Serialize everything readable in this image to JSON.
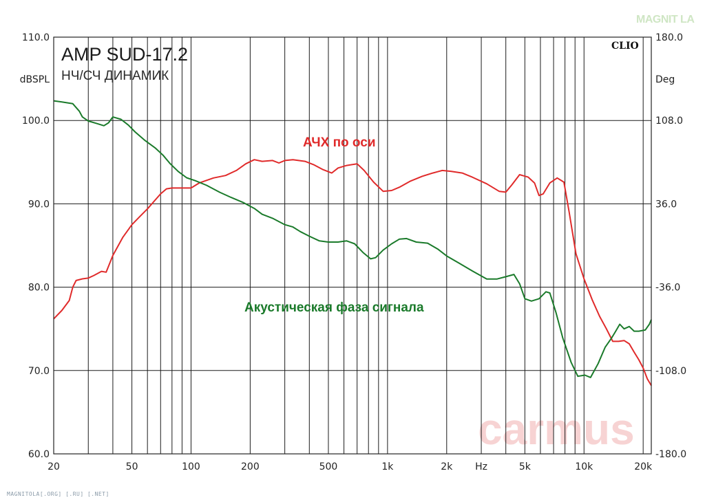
{
  "chart_data": {
    "type": "line",
    "title": "AMP SUD-17.2",
    "subtitle": "НЧ/СЧ ДИНАМИК",
    "brand": "CLIO",
    "x_scale": "log",
    "xlim": [
      20,
      22000
    ],
    "x_ticks": [
      {
        "value": 20,
        "label": "20"
      },
      {
        "value": 50,
        "label": "50"
      },
      {
        "value": 100,
        "label": "100"
      },
      {
        "value": 200,
        "label": "200"
      },
      {
        "value": 500,
        "label": "500"
      },
      {
        "value": 1000,
        "label": "1k"
      },
      {
        "value": 2000,
        "label": "2k"
      },
      {
        "value": 3000,
        "label": "Hz"
      },
      {
        "value": 5000,
        "label": "5k"
      },
      {
        "value": 10000,
        "label": "10k"
      },
      {
        "value": 20000,
        "label": "20k"
      }
    ],
    "gridlines_x": [
      20,
      30,
      40,
      50,
      60,
      70,
      80,
      90,
      100,
      200,
      300,
      400,
      500,
      600,
      700,
      800,
      900,
      1000,
      2000,
      3000,
      4000,
      5000,
      6000,
      7000,
      8000,
      9000,
      10000,
      20000
    ],
    "y_left": {
      "unit": "dBSPL",
      "ylim": [
        60,
        110
      ],
      "ticks": [
        "60.0",
        "70.0",
        "80.0",
        "90.0",
        "100.0",
        "110.0"
      ]
    },
    "y_right": {
      "unit": "Deg",
      "ylim": [
        -180,
        180
      ],
      "ticks": [
        "-180.0",
        "-108.0",
        "-36.0",
        "36.0",
        "108.0",
        "180.0"
      ]
    },
    "grid": true,
    "series": [
      {
        "name": "АЧХ по оси",
        "axis": "left",
        "color": "#e02a2a",
        "points": [
          [
            20,
            76.2
          ],
          [
            22,
            77.2
          ],
          [
            24,
            78.4
          ],
          [
            25,
            80
          ],
          [
            26,
            80.8
          ],
          [
            28,
            81.0
          ],
          [
            30,
            81.1
          ],
          [
            32,
            81.4
          ],
          [
            35,
            81.9
          ],
          [
            37,
            81.8
          ],
          [
            40,
            83.8
          ],
          [
            45,
            86.0
          ],
          [
            50,
            87.5
          ],
          [
            55,
            88.5
          ],
          [
            60,
            89.4
          ],
          [
            70,
            91.2
          ],
          [
            75,
            91.8
          ],
          [
            80,
            91.9
          ],
          [
            90,
            91.9
          ],
          [
            100,
            91.9
          ],
          [
            110,
            92.5
          ],
          [
            130,
            93.1
          ],
          [
            150,
            93.4
          ],
          [
            170,
            94.0
          ],
          [
            190,
            94.8
          ],
          [
            210,
            95.3
          ],
          [
            230,
            95.1
          ],
          [
            260,
            95.2
          ],
          [
            280,
            94.9
          ],
          [
            300,
            95.2
          ],
          [
            330,
            95.3
          ],
          [
            380,
            95.1
          ],
          [
            420,
            94.7
          ],
          [
            470,
            94.1
          ],
          [
            520,
            93.7
          ],
          [
            560,
            94.3
          ],
          [
            620,
            94.6
          ],
          [
            700,
            94.8
          ],
          [
            760,
            94.0
          ],
          [
            850,
            92.6
          ],
          [
            950,
            91.5
          ],
          [
            1050,
            91.6
          ],
          [
            1150,
            92.0
          ],
          [
            1300,
            92.7
          ],
          [
            1500,
            93.3
          ],
          [
            1700,
            93.7
          ],
          [
            1900,
            94.0
          ],
          [
            2100,
            93.9
          ],
          [
            2400,
            93.7
          ],
          [
            2700,
            93.2
          ],
          [
            3200,
            92.4
          ],
          [
            3700,
            91.5
          ],
          [
            4000,
            91.4
          ],
          [
            4300,
            92.3
          ],
          [
            4700,
            93.5
          ],
          [
            5200,
            93.2
          ],
          [
            5600,
            92.5
          ],
          [
            5900,
            91.0
          ],
          [
            6200,
            91.2
          ],
          [
            6700,
            92.5
          ],
          [
            7300,
            93.1
          ],
          [
            7900,
            92.6
          ],
          [
            8400,
            89.0
          ],
          [
            9100,
            84.0
          ],
          [
            10000,
            81.0
          ],
          [
            11000,
            78.5
          ],
          [
            12000,
            76.5
          ],
          [
            13000,
            75.0
          ],
          [
            14000,
            73.5
          ],
          [
            15000,
            73.5
          ],
          [
            16000,
            73.6
          ],
          [
            17000,
            73.2
          ],
          [
            18000,
            72.2
          ],
          [
            19000,
            71.3
          ],
          [
            20000,
            70.3
          ],
          [
            21000,
            69.0
          ],
          [
            22000,
            68.2
          ]
        ]
      },
      {
        "name": "Акустическая фаза сигнала",
        "axis": "right",
        "color": "#1a7a2a",
        "points": [
          [
            20,
            125
          ],
          [
            22,
            124
          ],
          [
            25,
            122.5
          ],
          [
            27,
            116
          ],
          [
            28,
            111
          ],
          [
            30,
            107.5
          ],
          [
            33,
            105.5
          ],
          [
            36,
            103.5
          ],
          [
            38,
            106
          ],
          [
            40,
            111
          ],
          [
            44,
            109
          ],
          [
            48,
            104
          ],
          [
            52,
            98
          ],
          [
            58,
            91
          ],
          [
            66,
            84
          ],
          [
            72,
            78
          ],
          [
            78,
            71
          ],
          [
            86,
            64
          ],
          [
            95,
            58.5
          ],
          [
            105,
            56
          ],
          [
            120,
            52
          ],
          [
            140,
            46
          ],
          [
            160,
            41.5
          ],
          [
            185,
            37
          ],
          [
            210,
            32
          ],
          [
            230,
            27
          ],
          [
            260,
            23.5
          ],
          [
            300,
            18
          ],
          [
            330,
            16
          ],
          [
            360,
            12
          ],
          [
            400,
            8
          ],
          [
            450,
            4
          ],
          [
            500,
            3
          ],
          [
            560,
            3
          ],
          [
            620,
            4
          ],
          [
            680,
            1.5
          ],
          [
            750,
            -6
          ],
          [
            820,
            -11.5
          ],
          [
            870,
            -10.5
          ],
          [
            950,
            -4
          ],
          [
            1050,
            1.5
          ],
          [
            1150,
            5.5
          ],
          [
            1250,
            6
          ],
          [
            1400,
            3
          ],
          [
            1600,
            2
          ],
          [
            1800,
            -3
          ],
          [
            2000,
            -9
          ],
          [
            2300,
            -15
          ],
          [
            2700,
            -22
          ],
          [
            3200,
            -29
          ],
          [
            3600,
            -29
          ],
          [
            4000,
            -27
          ],
          [
            4400,
            -25
          ],
          [
            4700,
            -33
          ],
          [
            5000,
            -46
          ],
          [
            5400,
            -48
          ],
          [
            5900,
            -46
          ],
          [
            6400,
            -40
          ],
          [
            6700,
            -41
          ],
          [
            7200,
            -58
          ],
          [
            7800,
            -80
          ],
          [
            8600,
            -101
          ],
          [
            9300,
            -113
          ],
          [
            10100,
            -112
          ],
          [
            10800,
            -114
          ],
          [
            11800,
            -102
          ],
          [
            12800,
            -88
          ],
          [
            13800,
            -80
          ],
          [
            14500,
            -74
          ],
          [
            15200,
            -68
          ],
          [
            16000,
            -72
          ],
          [
            17000,
            -70
          ],
          [
            18000,
            -74
          ],
          [
            19000,
            -74
          ],
          [
            20500,
            -73
          ],
          [
            21500,
            -68
          ],
          [
            22000,
            -64
          ]
        ]
      }
    ],
    "annotations": [
      {
        "text": "АЧХ по оси",
        "color": "#e02a2a"
      },
      {
        "text": "Акустическая фаза сигнала",
        "color": "#1a7a2a"
      }
    ]
  },
  "watermarks": {
    "carmus": "carmus",
    "magnitola_logo": "MAGNIT  LA",
    "footer": "MAGNITOLA[.ORG] [.RU] [.NET]"
  }
}
